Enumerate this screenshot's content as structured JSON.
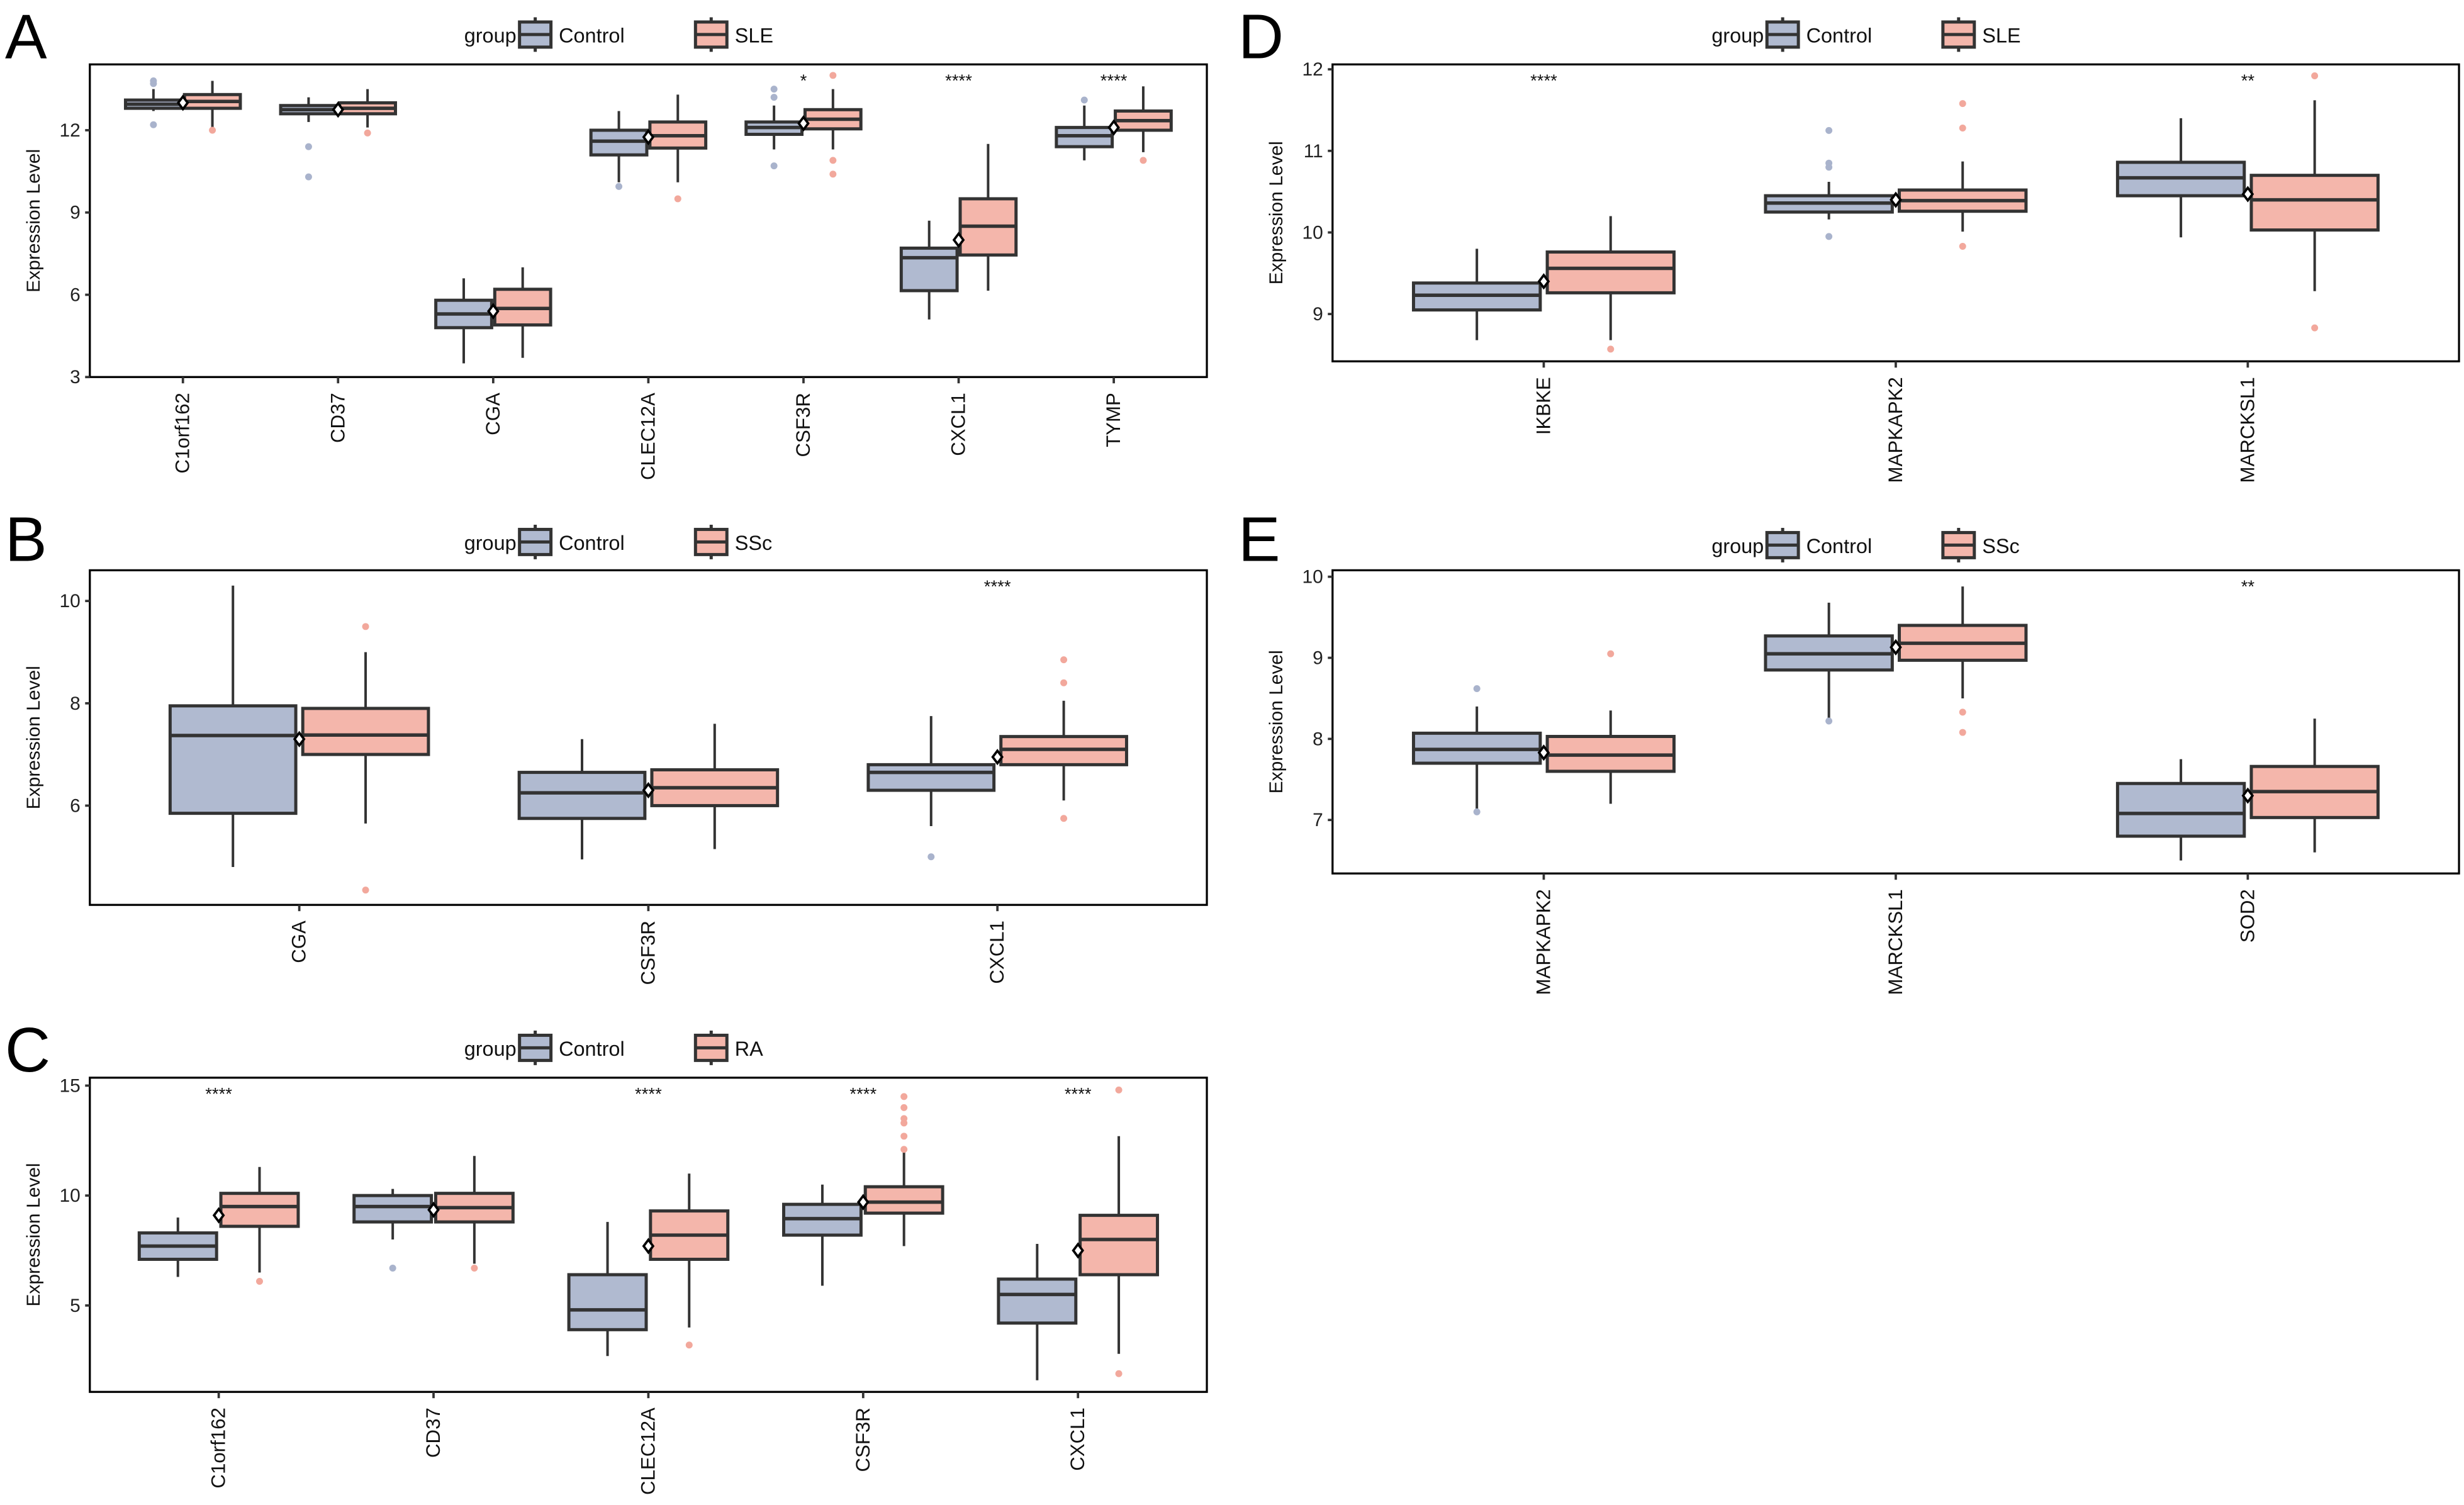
{
  "colors": {
    "control": "#b0bad0",
    "disease": "#f4b6ab",
    "outline": "#333333",
    "control_outlier": "#a9b3cc",
    "disease_outlier": "#f2a89c"
  },
  "chart_data": [
    {
      "panel": "A",
      "type": "box",
      "legend_title": "group",
      "groups": [
        "Control",
        "SLE"
      ],
      "ylabel": "Expression Level",
      "ylim": [
        3,
        14.4
      ],
      "yticks": [
        3,
        6,
        9,
        12
      ],
      "categories": [
        "C1orf162",
        "CD37",
        "CGA",
        "CLEC12A",
        "CSF3R",
        "CXCL1",
        "TYMP"
      ],
      "significance": [
        "",
        "",
        "",
        "",
        "*",
        "****",
        "****"
      ],
      "means": [
        13.0,
        12.75,
        5.4,
        11.75,
        12.25,
        8.0,
        12.1
      ],
      "series": [
        {
          "name": "Control",
          "boxes": [
            [
              12.7,
              12.8,
              12.95,
              13.1,
              13.5
            ],
            [
              12.3,
              12.6,
              12.75,
              12.9,
              13.2
            ],
            [
              3.5,
              4.8,
              5.3,
              5.8,
              6.6
            ],
            [
              10.1,
              11.1,
              11.6,
              12.0,
              12.7
            ],
            [
              11.3,
              11.85,
              12.1,
              12.3,
              12.9
            ],
            [
              5.1,
              6.15,
              7.35,
              7.7,
              8.7
            ],
            [
              10.9,
              11.4,
              11.8,
              12.1,
              12.9
            ]
          ],
          "outliers": [
            [
              13.7,
              13.8,
              12.2
            ],
            [
              11.4,
              10.3
            ],
            [],
            [
              9.95
            ],
            [
              13.5,
              13.2,
              10.7
            ],
            [],
            [
              13.1
            ]
          ]
        },
        {
          "name": "SLE",
          "boxes": [
            [
              12.1,
              12.8,
              13.05,
              13.3,
              13.8
            ],
            [
              12.1,
              12.6,
              12.8,
              13.0,
              13.5
            ],
            [
              3.7,
              4.9,
              5.5,
              6.2,
              7.0
            ],
            [
              10.1,
              11.35,
              11.8,
              12.3,
              13.3
            ],
            [
              11.3,
              12.05,
              12.4,
              12.75,
              13.5
            ],
            [
              6.15,
              7.45,
              8.5,
              9.5,
              11.5
            ],
            [
              11.2,
              12.0,
              12.35,
              12.7,
              13.6
            ]
          ],
          "outliers": [
            [
              12.0
            ],
            [
              11.9
            ],
            [],
            [
              9.5
            ],
            [
              14.0,
              10.9,
              10.4
            ],
            [],
            [
              10.9
            ]
          ]
        }
      ]
    },
    {
      "panel": "B",
      "type": "box",
      "legend_title": "group",
      "groups": [
        "Control",
        "SSc"
      ],
      "ylabel": "Expression Level",
      "ylim": [
        4.06,
        10.6
      ],
      "yticks": [
        6,
        8,
        10
      ],
      "categories": [
        "CGA",
        "CSF3R",
        "CXCL1"
      ],
      "significance": [
        "",
        "",
        "****"
      ],
      "means": [
        7.3,
        6.3,
        6.95
      ],
      "series": [
        {
          "name": "Control",
          "boxes": [
            [
              4.8,
              5.85,
              7.37,
              7.95,
              10.3
            ],
            [
              4.95,
              5.75,
              6.25,
              6.65,
              7.3
            ],
            [
              5.6,
              6.3,
              6.65,
              6.8,
              7.75
            ]
          ],
          "outliers": [
            [],
            [],
            [
              5.0
            ]
          ]
        },
        {
          "name": "SSc",
          "boxes": [
            [
              5.65,
              7.0,
              7.38,
              7.9,
              9.0
            ],
            [
              5.15,
              6.0,
              6.35,
              6.7,
              7.6
            ],
            [
              6.1,
              6.8,
              7.1,
              7.35,
              8.05
            ]
          ],
          "outliers": [
            [
              9.5,
              4.35
            ],
            [],
            [
              8.85,
              8.4,
              5.75
            ]
          ]
        }
      ]
    },
    {
      "panel": "C",
      "type": "box",
      "legend_title": "group",
      "groups": [
        "Control",
        "RA"
      ],
      "ylabel": "Expression Level",
      "ylim": [
        1.07,
        15.36
      ],
      "yticks": [
        5,
        10,
        15
      ],
      "categories": [
        "C1orf162",
        "CD37",
        "CLEC12A",
        "CSF3R",
        "CXCL1"
      ],
      "significance": [
        "****",
        "",
        "****",
        "****",
        "****"
      ],
      "means": [
        9.1,
        9.35,
        7.7,
        9.7,
        7.5
      ],
      "series": [
        {
          "name": "Control",
          "boxes": [
            [
              6.3,
              7.1,
              7.7,
              8.3,
              9.0
            ],
            [
              8.0,
              8.8,
              9.5,
              10.0,
              10.3
            ],
            [
              2.7,
              3.9,
              4.8,
              6.4,
              8.8
            ],
            [
              5.9,
              8.2,
              8.95,
              9.6,
              10.5
            ],
            [
              1.6,
              4.2,
              5.5,
              6.2,
              7.8
            ]
          ],
          "outliers": [
            [],
            [
              6.7
            ],
            [],
            [],
            []
          ]
        },
        {
          "name": "RA",
          "boxes": [
            [
              6.5,
              8.6,
              9.5,
              10.1,
              11.3
            ],
            [
              6.9,
              8.8,
              9.45,
              10.1,
              11.8
            ],
            [
              4.0,
              7.1,
              8.2,
              9.3,
              11.0
            ],
            [
              7.7,
              9.2,
              9.7,
              10.4,
              12.0
            ],
            [
              2.8,
              6.4,
              8.0,
              9.1,
              12.7
            ]
          ],
          "outliers": [
            [
              6.1
            ],
            [
              6.7
            ],
            [
              3.2
            ],
            [
              14.5,
              14.0,
              13.5,
              13.3,
              12.7,
              12.1
            ],
            [
              14.8,
              1.9
            ]
          ]
        }
      ]
    },
    {
      "panel": "D",
      "type": "box",
      "legend_title": "group",
      "groups": [
        "Control",
        "SLE"
      ],
      "ylabel": "Expression Level",
      "ylim": [
        8.42,
        12.06
      ],
      "yticks": [
        9,
        10,
        11,
        12
      ],
      "categories": [
        "IKBKE",
        "MAPKAPK2",
        "MARCKSL1"
      ],
      "significance": [
        "****",
        "",
        "**"
      ],
      "means": [
        9.4,
        10.4,
        10.47
      ],
      "series": [
        {
          "name": "Control",
          "boxes": [
            [
              8.68,
              9.05,
              9.23,
              9.38,
              9.8
            ],
            [
              10.16,
              10.25,
              10.36,
              10.45,
              10.62
            ],
            [
              9.94,
              10.45,
              10.67,
              10.86,
              11.4
            ]
          ],
          "outliers": [
            [],
            [
              11.25,
              10.85,
              10.8,
              9.95
            ],
            []
          ]
        },
        {
          "name": "SLE",
          "boxes": [
            [
              8.68,
              9.26,
              9.56,
              9.76,
              10.2
            ],
            [
              10.01,
              10.26,
              10.39,
              10.52,
              10.87
            ],
            [
              9.28,
              10.03,
              10.4,
              10.7,
              11.62
            ]
          ],
          "outliers": [
            [
              8.57
            ],
            [
              11.58,
              11.28,
              9.83
            ],
            [
              11.92,
              8.83
            ]
          ]
        }
      ]
    },
    {
      "panel": "E",
      "type": "box",
      "legend_title": "group",
      "groups": [
        "Control",
        "SSc"
      ],
      "ylabel": "Expression Level",
      "ylim": [
        6.34,
        10.08
      ],
      "yticks": [
        7,
        8,
        9,
        10
      ],
      "categories": [
        "MAPKAPK2",
        "MARCKSL1",
        "SOD2"
      ],
      "significance": [
        "",
        "",
        "**"
      ],
      "means": [
        7.83,
        9.13,
        7.3
      ],
      "series": [
        {
          "name": "Control",
          "boxes": [
            [
              7.1,
              7.7,
              7.87,
              8.07,
              8.4
            ],
            [
              8.25,
              8.85,
              9.05,
              9.27,
              9.68
            ],
            [
              6.5,
              6.8,
              7.08,
              7.45,
              7.75
            ]
          ],
          "outliers": [
            [
              8.62,
              7.1
            ],
            [
              8.22
            ],
            []
          ]
        },
        {
          "name": "SSc",
          "boxes": [
            [
              7.2,
              7.6,
              7.8,
              8.03,
              8.35
            ],
            [
              8.5,
              8.97,
              9.18,
              9.4,
              9.88
            ],
            [
              6.6,
              7.03,
              7.35,
              7.66,
              8.25
            ]
          ],
          "outliers": [
            [
              9.05
            ],
            [
              8.33,
              8.08
            ],
            []
          ]
        }
      ]
    }
  ]
}
